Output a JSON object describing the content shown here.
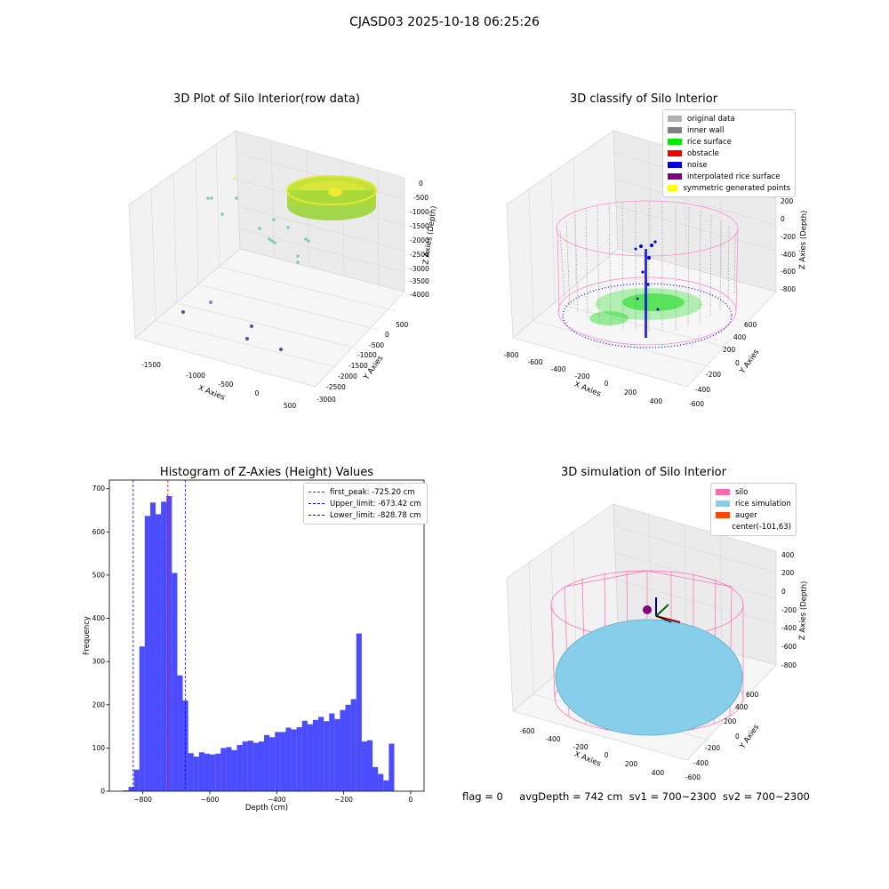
{
  "supertitle": "CJASD03 2025-10-18 06:25:26",
  "panels": {
    "raw": {
      "title": "3D Plot of Silo Interior(row data)",
      "xlabel": "X Axies",
      "ylabel": "Y Axies",
      "zlabel": "Z Axies (Depth)",
      "xticks": [
        "-1500",
        "-1000",
        "-500",
        "0",
        "500"
      ],
      "yticks": [
        "500",
        "0",
        "-500",
        "-1000",
        "-1500",
        "-2000",
        "-2500",
        "-3000"
      ],
      "zticks": [
        "0",
        "-500",
        "-1000",
        "-1500",
        "-2000",
        "-2500",
        "-3000",
        "-3500",
        "-4000"
      ]
    },
    "classify": {
      "title": "3D classify of Silo Interior",
      "xlabel": "X Axies",
      "ylabel": "Y Axies",
      "zlabel": "Z Axies (Depth)",
      "xticks": [
        "-800",
        "-600",
        "-400",
        "-200",
        "0",
        "200",
        "400"
      ],
      "yticks": [
        "600",
        "400",
        "200",
        "0",
        "-200",
        "-400",
        "-600"
      ],
      "zticks": [
        "200",
        "0",
        "-200",
        "-400",
        "-600",
        "-800"
      ],
      "legend": [
        {
          "label": "original data",
          "color": "#b0b0b0"
        },
        {
          "label": "inner wall",
          "color": "#808080"
        },
        {
          "label": "rice surface",
          "color": "#00ee00"
        },
        {
          "label": "obstacle",
          "color": "#ee0000"
        },
        {
          "label": "noise",
          "color": "#0000dd"
        },
        {
          "label": "interpolated rice surface",
          "color": "#800080"
        },
        {
          "label": "symmetric generated points",
          "color": "#ffff00"
        }
      ]
    },
    "simulation": {
      "title": "3D simulation of Silo Interior",
      "xlabel": "X Axies",
      "ylabel": "Y Axies",
      "zlabel": "Z Axies (Depth)",
      "xticks": [
        "-600",
        "-400",
        "-200",
        "0",
        "200",
        "400"
      ],
      "yticks": [
        "600",
        "400",
        "200",
        "0",
        "-200",
        "-400",
        "-600"
      ],
      "zticks": [
        "400",
        "200",
        "0",
        "-200",
        "-400",
        "-600",
        "-800"
      ],
      "legend": [
        {
          "label": "silo",
          "color": "#ff69b4"
        },
        {
          "label": "rice simulation",
          "color": "#87ceeb"
        },
        {
          "label": "auger",
          "color": "#ff4500"
        },
        {
          "label": "center(-101,63)",
          "color": "#ffffff"
        }
      ]
    }
  },
  "status": {
    "flag": "flag = 0",
    "avg_depth": "avgDepth = 742 cm",
    "sv1": "sv1 = 700~2300",
    "sv2": "sv2 = 700~2300"
  },
  "chart_data": {
    "type": "bar",
    "title": "Histogram of Z-Axies (Height) Values",
    "xlabel": "Depth (cm)",
    "ylabel": "Frequency",
    "xlim": [
      -900,
      40
    ],
    "ylim": [
      0,
      720
    ],
    "xticks": [
      -800,
      -600,
      -400,
      -200,
      0
    ],
    "yticks": [
      0,
      100,
      200,
      300,
      400,
      500,
      600,
      700
    ],
    "bar_color": "#0000ff",
    "bin_start": -859,
    "bin_width": 16.2,
    "values": [
      2,
      10,
      50,
      335,
      637,
      668,
      641,
      670,
      683,
      505,
      268,
      210,
      88,
      80,
      90,
      87,
      85,
      87,
      100,
      102,
      95,
      107,
      115,
      117,
      112,
      115,
      130,
      125,
      137,
      137,
      147,
      143,
      148,
      163,
      155,
      165,
      172,
      162,
      180,
      167,
      188,
      200,
      213,
      365,
      115,
      118,
      56,
      40,
      25,
      110
    ],
    "vlines": [
      {
        "x": -725.2,
        "label": "first_peak: -725.20 cm",
        "color": "#ff0000"
      },
      {
        "x": -673.42,
        "label": "Upper_limit: -673.42 cm",
        "color": "#0000ff"
      },
      {
        "x": -828.78,
        "label": "Lower_limit: -828.78 cm",
        "color": "#0000ff"
      }
    ]
  }
}
